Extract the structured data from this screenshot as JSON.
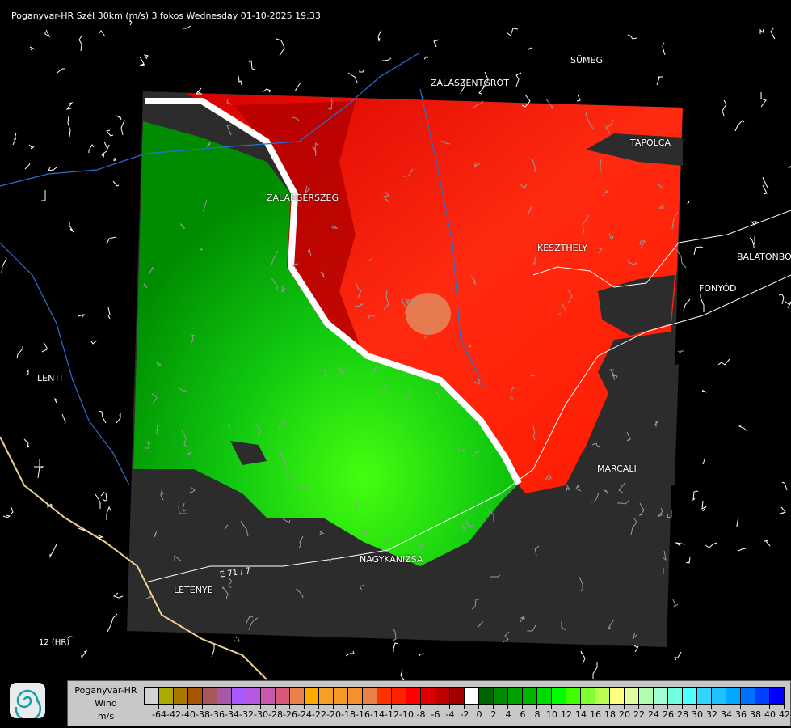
{
  "title": "Poganyvar-HR Szél 30km (m/s) 3 fokos Wednesday 01-10-2025 19:33",
  "cities": [
    {
      "name": "SÜMEG"
    },
    {
      "name": "ZALASZENTGRÓT"
    },
    {
      "name": "TAPOLCA"
    },
    {
      "name": "ZALAEGERSZEG"
    },
    {
      "name": "KESZTHELY"
    },
    {
      "name": "BALATONBO"
    },
    {
      "name": "FONYÓD"
    },
    {
      "name": "LENTI"
    },
    {
      "name": "MARCALI"
    },
    {
      "name": "NAGYKANIZSA"
    },
    {
      "name": "LETENYE"
    }
  ],
  "roads": [
    "12 (HR)",
    "E 71 / 7"
  ],
  "legend": {
    "radar": "Poganyvar-HR",
    "quantity": "Wind",
    "unit": "m/s",
    "labels": [
      "-64",
      "-42",
      "-40",
      "-38",
      "-36",
      "-34",
      "-32",
      "-30",
      "-28",
      "-26",
      "-24",
      "-22",
      "-20",
      "-18",
      "-16",
      "-14",
      "-12",
      "-10",
      "-8",
      "-6",
      "-4",
      "-2",
      "0",
      "2",
      "4",
      "6",
      "8",
      "10",
      "12",
      "14",
      "16",
      "18",
      "20",
      "22",
      "24",
      "26",
      "28",
      "30",
      "32",
      "34",
      "36",
      "38",
      "40",
      "42"
    ],
    "colors": [
      "#d3d3d3",
      "#aaaa00",
      "#a87800",
      "#a85400",
      "#a85858",
      "#a858a8",
      "#a858ff",
      "#b858e0",
      "#c858b0",
      "#d85878",
      "#e8804a",
      "#ffaa00",
      "#f5a020",
      "#f59a28",
      "#f59030",
      "#e88048",
      "#ff3300",
      "#ff2200",
      "#ff0000",
      "#e00000",
      "#c00000",
      "#a00000",
      "#ffffff",
      "#006400",
      "#008c00",
      "#00a000",
      "#00b400",
      "#00dc00",
      "#00ff00",
      "#40ff00",
      "#80ff30",
      "#b8ff50",
      "#ffff80",
      "#e0ffa0",
      "#b0ffb0",
      "#a0ffd0",
      "#70ffe0",
      "#50ffff",
      "#30d8ff",
      "#20c0ff",
      "#00a8ff",
      "#0070ff",
      "#0040ff",
      "#0000ff"
    ]
  },
  "colors": {
    "no_data": "#2c2c2c",
    "background": "#000000",
    "outbound": "#ff1a00",
    "inbound": "#00c800"
  }
}
